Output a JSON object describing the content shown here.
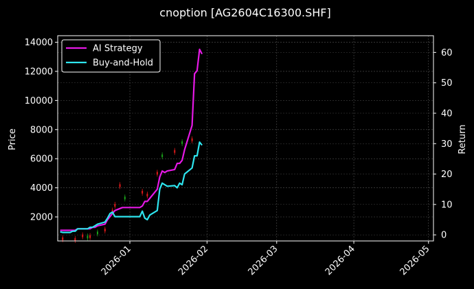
{
  "chart_data": {
    "type": "line",
    "title": "cnoption [AG2604C16300.SHF]",
    "ylabel": "Price",
    "ylabel_right": "Return",
    "xlabel": "",
    "x_ticks": [
      "2026-01",
      "2026-02",
      "2026-03",
      "2026-04",
      "2026-05"
    ],
    "y_ticks": [
      2000,
      4000,
      6000,
      8000,
      10000,
      12000,
      14000
    ],
    "y2_ticks": [
      0,
      10,
      20,
      30,
      40,
      50,
      60
    ],
    "xlim": [
      "2025-12-03",
      "2026-05-03"
    ],
    "ylim": [
      350,
      14450
    ],
    "y2lim": [
      -2,
      65.5
    ],
    "grid": true,
    "legend": "top-left",
    "background": "#000000",
    "series": [
      {
        "name": "AI Strategy",
        "color": "#e619e6",
        "axis": "right",
        "x": [
          "2025-12-04",
          "2025-12-05",
          "2025-12-08",
          "2025-12-09",
          "2025-12-10",
          "2025-12-11",
          "2025-12-12",
          "2025-12-15",
          "2025-12-16",
          "2025-12-17",
          "2025-12-18",
          "2025-12-19",
          "2025-12-22",
          "2025-12-23",
          "2025-12-24",
          "2025-12-25",
          "2025-12-26",
          "2025-12-29",
          "2025-12-30",
          "2025-12-31",
          "2026-01-05",
          "2026-01-06",
          "2026-01-07",
          "2026-01-08",
          "2026-01-09",
          "2026-01-12",
          "2026-01-13",
          "2026-01-14",
          "2026-01-15",
          "2026-01-16",
          "2026-01-19",
          "2026-01-20",
          "2026-01-21",
          "2026-01-22",
          "2026-01-23",
          "2026-01-26",
          "2026-01-27",
          "2026-01-28",
          "2026-01-29",
          "2026-01-30"
        ],
        "values": [
          1.5,
          1.5,
          1.5,
          1.5,
          1.5,
          2,
          2,
          2,
          2,
          2.5,
          2.5,
          3,
          3.5,
          5,
          6,
          7,
          8,
          9,
          9,
          9,
          9,
          9.5,
          11,
          11,
          12,
          15,
          19,
          21,
          20.5,
          21,
          21.5,
          23.5,
          23.5,
          24.5,
          28,
          36,
          53,
          54,
          61,
          59.5
        ]
      },
      {
        "name": "Buy-and-Hold",
        "color": "#2ee6f0",
        "axis": "right",
        "x": [
          "2025-12-04",
          "2025-12-05",
          "2025-12-08",
          "2025-12-09",
          "2025-12-10",
          "2025-12-11",
          "2025-12-12",
          "2025-12-15",
          "2025-12-16",
          "2025-12-17",
          "2025-12-18",
          "2025-12-19",
          "2025-12-22",
          "2025-12-23",
          "2025-12-24",
          "2025-12-25",
          "2025-12-26",
          "2025-12-29",
          "2025-12-30",
          "2025-12-31",
          "2026-01-05",
          "2026-01-06",
          "2026-01-07",
          "2026-01-08",
          "2026-01-09",
          "2026-01-12",
          "2026-01-13",
          "2026-01-14",
          "2026-01-15",
          "2026-01-16",
          "2026-01-19",
          "2026-01-20",
          "2026-01-21",
          "2026-01-22",
          "2026-01-23",
          "2026-01-26",
          "2026-01-27",
          "2026-01-28",
          "2026-01-29",
          "2026-01-30"
        ],
        "values": [
          1,
          0.8,
          0.8,
          1.2,
          1.2,
          2,
          2,
          2,
          2.5,
          2.5,
          3,
          3.5,
          4.2,
          5.5,
          7,
          7.5,
          6,
          6,
          6,
          6,
          6,
          7.8,
          5.5,
          5,
          6.5,
          8,
          15,
          17,
          16.5,
          16,
          16.2,
          15.5,
          17,
          16.5,
          20,
          22,
          26,
          26,
          30.5,
          29.5
        ]
      }
    ],
    "price_candles": {
      "axis": "left",
      "up_color": "#1aa01a",
      "down_color": "#e01a1a",
      "points": [
        {
          "x": "2025-12-05",
          "price": 500,
          "dir": "down"
        },
        {
          "x": "2025-12-10",
          "price": 450,
          "dir": "down"
        },
        {
          "x": "2025-12-13",
          "price": 700,
          "dir": "down"
        },
        {
          "x": "2025-12-15",
          "price": 620,
          "dir": "up"
        },
        {
          "x": "2025-12-16",
          "price": 650,
          "dir": "down"
        },
        {
          "x": "2025-12-19",
          "price": 900,
          "dir": "up"
        },
        {
          "x": "2025-12-22",
          "price": 1100,
          "dir": "down"
        },
        {
          "x": "2025-12-25",
          "price": 2400,
          "dir": "down"
        },
        {
          "x": "2025-12-26",
          "price": 2800,
          "dir": "down"
        },
        {
          "x": "2025-12-28",
          "price": 4150,
          "dir": "down"
        },
        {
          "x": "2025-12-30",
          "price": 3300,
          "dir": "up"
        },
        {
          "x": "2026-01-06",
          "price": 3700,
          "dir": "down"
        },
        {
          "x": "2026-01-08",
          "price": 3500,
          "dir": "down"
        },
        {
          "x": "2026-01-12",
          "price": 5000,
          "dir": "down"
        },
        {
          "x": "2026-01-14",
          "price": 6200,
          "dir": "up"
        },
        {
          "x": "2026-01-19",
          "price": 6500,
          "dir": "down"
        },
        {
          "x": "2026-01-22",
          "price": 7100,
          "dir": "up"
        },
        {
          "x": "2026-01-26",
          "price": 7300,
          "dir": "down"
        }
      ]
    }
  }
}
